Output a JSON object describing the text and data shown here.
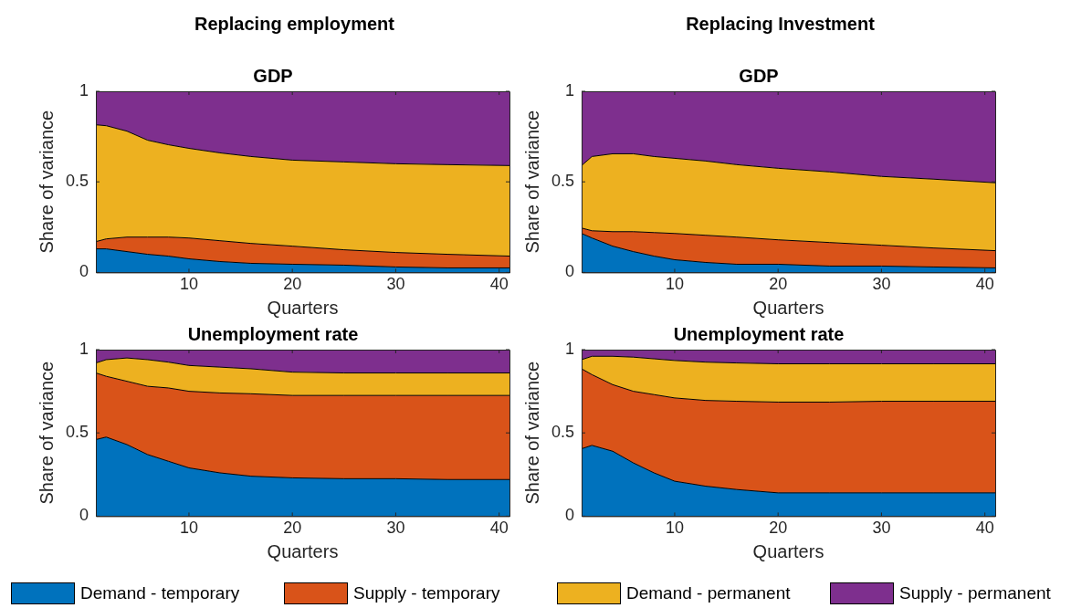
{
  "chart_data": [
    {
      "type": "area",
      "stacked": true,
      "subtitle": "Replacing employment",
      "title": "GDP",
      "xlabel": "Quarters",
      "ylabel": "Share of variance",
      "legend": "bottom",
      "x": [
        1,
        2,
        4,
        6,
        8,
        10,
        13,
        16,
        20,
        25,
        30,
        35,
        41
      ],
      "xlim": [
        1,
        41
      ],
      "xticks": [
        10,
        20,
        30,
        40
      ],
      "ylim": [
        0,
        1
      ],
      "yticks": [
        0,
        0.5,
        1
      ],
      "series": [
        {
          "name": "Demand - temporary",
          "color": "#0072bd",
          "values": [
            0.13,
            0.13,
            0.115,
            0.1,
            0.09,
            0.075,
            0.06,
            0.05,
            0.045,
            0.04,
            0.03,
            0.025,
            0.025
          ]
        },
        {
          "name": "Supply - temporary",
          "color": "#d95319",
          "values": [
            0.04,
            0.055,
            0.08,
            0.095,
            0.105,
            0.115,
            0.115,
            0.11,
            0.1,
            0.085,
            0.08,
            0.075,
            0.065
          ]
        },
        {
          "name": "Demand - permanent",
          "color": "#edb120",
          "values": [
            0.645,
            0.625,
            0.585,
            0.535,
            0.51,
            0.495,
            0.485,
            0.48,
            0.475,
            0.485,
            0.49,
            0.495,
            0.5
          ]
        },
        {
          "name": "Supply - permanent",
          "color": "#7e2f8e",
          "values": [
            0.185,
            0.19,
            0.22,
            0.27,
            0.295,
            0.315,
            0.34,
            0.36,
            0.38,
            0.39,
            0.4,
            0.405,
            0.41
          ]
        }
      ]
    },
    {
      "type": "area",
      "stacked": true,
      "subtitle": "Replacing Investment",
      "title": "GDP",
      "xlabel": "Quarters",
      "ylabel": "Share of variance",
      "x": [
        1,
        2,
        4,
        6,
        8,
        10,
        13,
        16,
        20,
        25,
        30,
        35,
        41
      ],
      "xlim": [
        1,
        41
      ],
      "xticks": [
        10,
        20,
        30,
        40
      ],
      "ylim": [
        0,
        1
      ],
      "yticks": [
        0,
        0.5,
        1
      ],
      "series": [
        {
          "color": "#0072bd",
          "values": [
            0.215,
            0.19,
            0.145,
            0.115,
            0.09,
            0.07,
            0.055,
            0.045,
            0.045,
            0.035,
            0.035,
            0.03,
            0.025
          ]
        },
        {
          "color": "#d95319",
          "values": [
            0.03,
            0.04,
            0.08,
            0.11,
            0.13,
            0.145,
            0.15,
            0.15,
            0.135,
            0.13,
            0.115,
            0.105,
            0.095
          ]
        },
        {
          "color": "#edb120",
          "values": [
            0.345,
            0.41,
            0.43,
            0.43,
            0.42,
            0.415,
            0.41,
            0.4,
            0.395,
            0.39,
            0.38,
            0.38,
            0.375
          ]
        },
        {
          "color": "#7e2f8e",
          "values": [
            0.41,
            0.36,
            0.345,
            0.345,
            0.36,
            0.37,
            0.385,
            0.405,
            0.425,
            0.445,
            0.47,
            0.485,
            0.505
          ]
        }
      ]
    },
    {
      "type": "area",
      "stacked": true,
      "title": "Unemployment rate",
      "xlabel": "Quarters",
      "ylabel": "Share of variance",
      "x": [
        1,
        2,
        4,
        6,
        8,
        10,
        13,
        16,
        20,
        25,
        30,
        35,
        41
      ],
      "xlim": [
        1,
        41
      ],
      "xticks": [
        10,
        20,
        30,
        40
      ],
      "ylim": [
        0,
        1
      ],
      "yticks": [
        0,
        0.5,
        1
      ],
      "series": [
        {
          "color": "#0072bd",
          "values": [
            0.46,
            0.475,
            0.43,
            0.37,
            0.33,
            0.29,
            0.26,
            0.24,
            0.23,
            0.225,
            0.225,
            0.22,
            0.22
          ]
        },
        {
          "color": "#d95319",
          "values": [
            0.4,
            0.365,
            0.38,
            0.41,
            0.44,
            0.46,
            0.48,
            0.495,
            0.495,
            0.5,
            0.5,
            0.505,
            0.505
          ]
        },
        {
          "color": "#edb120",
          "values": [
            0.06,
            0.1,
            0.14,
            0.16,
            0.155,
            0.155,
            0.155,
            0.15,
            0.14,
            0.135,
            0.135,
            0.135,
            0.135
          ]
        },
        {
          "color": "#7e2f8e",
          "values": [
            0.08,
            0.06,
            0.05,
            0.06,
            0.075,
            0.095,
            0.105,
            0.115,
            0.135,
            0.14,
            0.14,
            0.14,
            0.14
          ]
        }
      ]
    },
    {
      "type": "area",
      "stacked": true,
      "title": "Unemployment rate",
      "xlabel": "Quarters",
      "ylabel": "Share of variance",
      "x": [
        1,
        2,
        4,
        6,
        8,
        10,
        13,
        16,
        20,
        25,
        30,
        35,
        41
      ],
      "xlim": [
        1,
        41
      ],
      "xticks": [
        10,
        20,
        30,
        40
      ],
      "ylim": [
        0,
        1
      ],
      "yticks": [
        0,
        0.5,
        1
      ],
      "series": [
        {
          "color": "#0072bd",
          "values": [
            0.405,
            0.425,
            0.39,
            0.32,
            0.26,
            0.21,
            0.18,
            0.16,
            0.14,
            0.14,
            0.14,
            0.14,
            0.14
          ]
        },
        {
          "color": "#d95319",
          "values": [
            0.48,
            0.425,
            0.4,
            0.43,
            0.47,
            0.5,
            0.515,
            0.53,
            0.545,
            0.545,
            0.55,
            0.55,
            0.55
          ]
        },
        {
          "color": "#edb120",
          "values": [
            0.055,
            0.11,
            0.17,
            0.205,
            0.215,
            0.225,
            0.23,
            0.23,
            0.23,
            0.23,
            0.225,
            0.225,
            0.225
          ]
        },
        {
          "color": "#7e2f8e",
          "values": [
            0.06,
            0.04,
            0.04,
            0.045,
            0.055,
            0.065,
            0.075,
            0.08,
            0.085,
            0.085,
            0.085,
            0.085,
            0.085
          ]
        }
      ]
    }
  ]
}
